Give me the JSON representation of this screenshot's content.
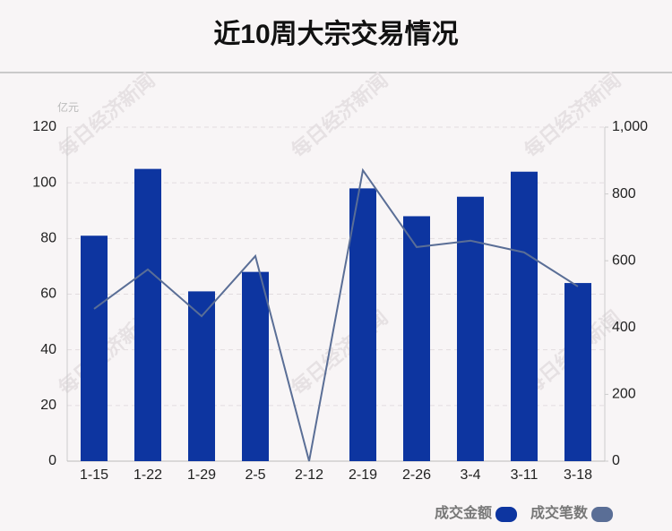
{
  "chart_data": {
    "type": "bar",
    "title": "近10周大宗交易情况",
    "y_unit": "亿元",
    "watermark": "每日经济新闻",
    "categories": [
      "1-15",
      "1-22",
      "1-29",
      "2-5",
      "2-12",
      "2-19",
      "2-26",
      "3-4",
      "3-11",
      "3-18"
    ],
    "series": [
      {
        "name": "成交金额",
        "type": "bar",
        "color": "#0d35a0",
        "values": [
          81,
          105,
          61,
          68,
          0,
          98,
          88,
          95,
          104,
          64
        ]
      },
      {
        "name": "成交笔数",
        "type": "line",
        "axis": "y2",
        "color": "#5a6e96",
        "values": [
          456,
          574,
          434,
          614,
          0,
          871,
          641,
          660,
          625,
          523
        ]
      }
    ],
    "ylim": [
      0,
      120
    ],
    "yticks": [
      0,
      20,
      40,
      60,
      80,
      100,
      120
    ],
    "y2lim": [
      0,
      1000
    ],
    "y2ticks": [
      0,
      200,
      400,
      600,
      800,
      {
        "value": 1000,
        "label": "1,000"
      }
    ],
    "grid": true
  }
}
